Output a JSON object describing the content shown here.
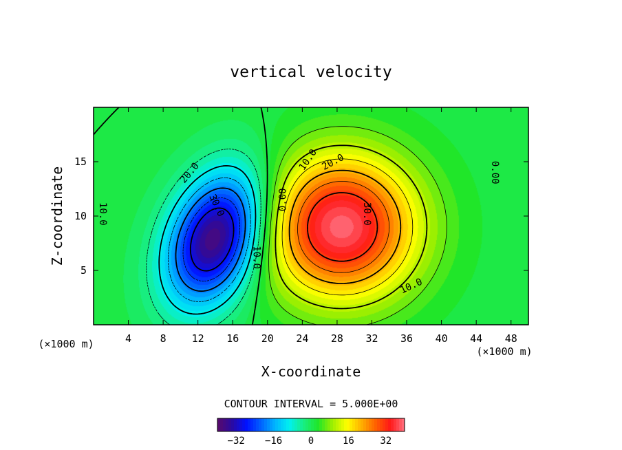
{
  "chart_data": {
    "type": "contour",
    "title": "vertical velocity",
    "xlabel": "X-coordinate",
    "ylabel": "Z-coordinate",
    "x_unit": "(×1000 m)",
    "y_unit": "(×1000 m)",
    "xlim": [
      0,
      50
    ],
    "ylim": [
      0,
      20
    ],
    "x_ticks": [
      4,
      8,
      12,
      16,
      20,
      24,
      28,
      32,
      36,
      40,
      44,
      48
    ],
    "y_ticks": [
      5,
      10,
      15
    ],
    "contour_interval_text": "CONTOUR INTERVAL = 5.000E+00",
    "contour_interval": 5,
    "contour_levels": [
      -30,
      -25,
      -20,
      -15,
      -10,
      -5,
      0,
      5,
      10,
      15,
      20,
      25,
      30
    ],
    "field": {
      "description": "updraft / downdraft pair",
      "updraft_center": {
        "x": 28.5,
        "z": 9.0,
        "peak": 38
      },
      "downdraft_center": {
        "x": 14.0,
        "z": 8.0,
        "peak": -40
      },
      "zero_line_x": [
        20.5,
        46.5
      ]
    },
    "contour_labels": [
      {
        "text": "20.0",
        "x": 11.0,
        "z": 14.0,
        "rot": -50
      },
      {
        "text": "30.0",
        "x": 14.2,
        "z": 11.0,
        "rot": 65
      },
      {
        "text": "10.0",
        "x": 1.1,
        "z": 10.2,
        "rot": 90
      },
      {
        "text": "10.0",
        "x": 18.8,
        "z": 6.2,
        "rot": 90
      },
      {
        "text": "0.00",
        "x": 21.7,
        "z": 11.5,
        "rot": -90
      },
      {
        "text": "10.0",
        "x": 24.6,
        "z": 15.2,
        "rot": -55
      },
      {
        "text": "20.0",
        "x": 27.5,
        "z": 15.0,
        "rot": -28
      },
      {
        "text": "30.0",
        "x": 31.5,
        "z": 10.2,
        "rot": 90
      },
      {
        "text": "10.0",
        "x": 36.5,
        "z": 3.6,
        "rot": -25
      },
      {
        "text": "0.00",
        "x": 46.2,
        "z": 14.0,
        "rot": 90
      }
    ],
    "colorbar": {
      "min": -40,
      "max": 40,
      "ticks": [
        -32,
        -16,
        0,
        16,
        32
      ],
      "tick_labels": [
        "−32",
        "−16",
        "0",
        "16",
        "32"
      ]
    },
    "colormap": [
      "#5a0a6a",
      "#2a0aa0",
      "#0010ff",
      "#0060ff",
      "#00b4ff",
      "#00f0f0",
      "#18ee80",
      "#20e628",
      "#a0ef00",
      "#ffff00",
      "#ffb000",
      "#ff6000",
      "#ff1818",
      "#ff7080"
    ]
  }
}
